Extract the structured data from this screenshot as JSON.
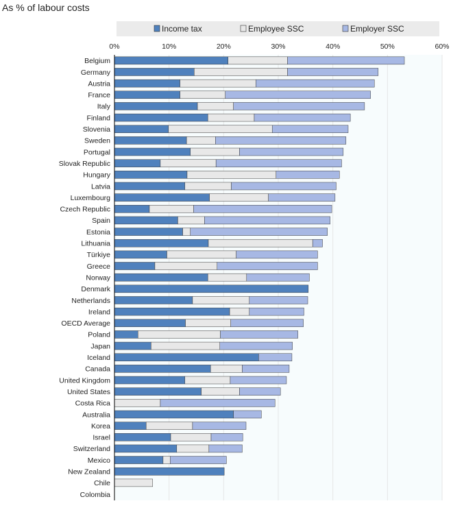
{
  "chart_data": {
    "type": "bar",
    "stacked": true,
    "orientation": "horizontal",
    "title": "As % of labour costs",
    "xlabel": "",
    "ylabel": "",
    "xlim": [
      0,
      60
    ],
    "x_ticks": [
      0,
      10,
      20,
      30,
      40,
      50,
      60
    ],
    "x_tick_labels": [
      "0%",
      "10%",
      "20%",
      "30%",
      "40%",
      "50%",
      "60%"
    ],
    "legend_position": "top",
    "categories": [
      "Belgium",
      "Germany",
      "Austria",
      "France",
      "Italy",
      "Finland",
      "Slovenia",
      "Sweden",
      "Portugal",
      "Slovak Republic",
      "Hungary",
      "Latvia",
      "Luxembourg",
      "Czech Republic",
      "Spain",
      "Estonia",
      "Lithuania",
      "Türkiye",
      "Greece",
      "Norway",
      "Denmark",
      "Netherlands",
      "Ireland",
      "OECD Average",
      "Poland",
      "Japan",
      "Iceland",
      "Canada",
      "United Kingdom",
      "United States",
      "Costa Rica",
      "Australia",
      "Korea",
      "Israel",
      "Switzerland",
      "Mexico",
      "New Zealand",
      "Chile",
      "Colombia"
    ],
    "series": [
      {
        "name": "Income tax",
        "color": "#4f81bd",
        "values": [
          20.8,
          14.6,
          12.0,
          12.0,
          15.2,
          17.1,
          9.9,
          13.2,
          13.9,
          8.4,
          13.3,
          12.9,
          17.4,
          6.4,
          11.6,
          12.5,
          17.2,
          9.6,
          7.4,
          17.1,
          35.5,
          14.3,
          21.1,
          13.0,
          4.3,
          6.7,
          26.4,
          17.6,
          12.9,
          15.9,
          0.0,
          21.8,
          5.8,
          10.3,
          11.4,
          8.9,
          20.1,
          0.0,
          0.0
        ]
      },
      {
        "name": "Employee SSC",
        "color": "#e8e8e8",
        "values": [
          10.9,
          17.1,
          13.9,
          8.3,
          6.6,
          8.5,
          19.0,
          5.3,
          9.0,
          10.2,
          16.3,
          8.5,
          10.8,
          8.1,
          4.9,
          1.4,
          19.1,
          12.7,
          11.4,
          7.1,
          0.0,
          10.4,
          3.6,
          8.3,
          15.1,
          12.6,
          0.0,
          5.8,
          8.3,
          7.0,
          8.4,
          0.0,
          8.5,
          7.4,
          5.9,
          1.3,
          0.0,
          7.0,
          0.0
        ]
      },
      {
        "name": "Employer SSC",
        "color": "#a7b8e4",
        "values": [
          21.4,
          16.6,
          21.7,
          26.6,
          24.0,
          17.6,
          13.9,
          23.9,
          19.0,
          23.0,
          11.6,
          19.2,
          12.2,
          25.3,
          23.0,
          25.1,
          1.8,
          14.9,
          18.4,
          11.5,
          0.0,
          10.7,
          10.0,
          13.3,
          14.2,
          13.3,
          6.1,
          8.6,
          10.3,
          7.5,
          21.0,
          5.1,
          9.8,
          5.8,
          6.1,
          10.3,
          0.0,
          0.0,
          0.0
        ]
      }
    ]
  }
}
